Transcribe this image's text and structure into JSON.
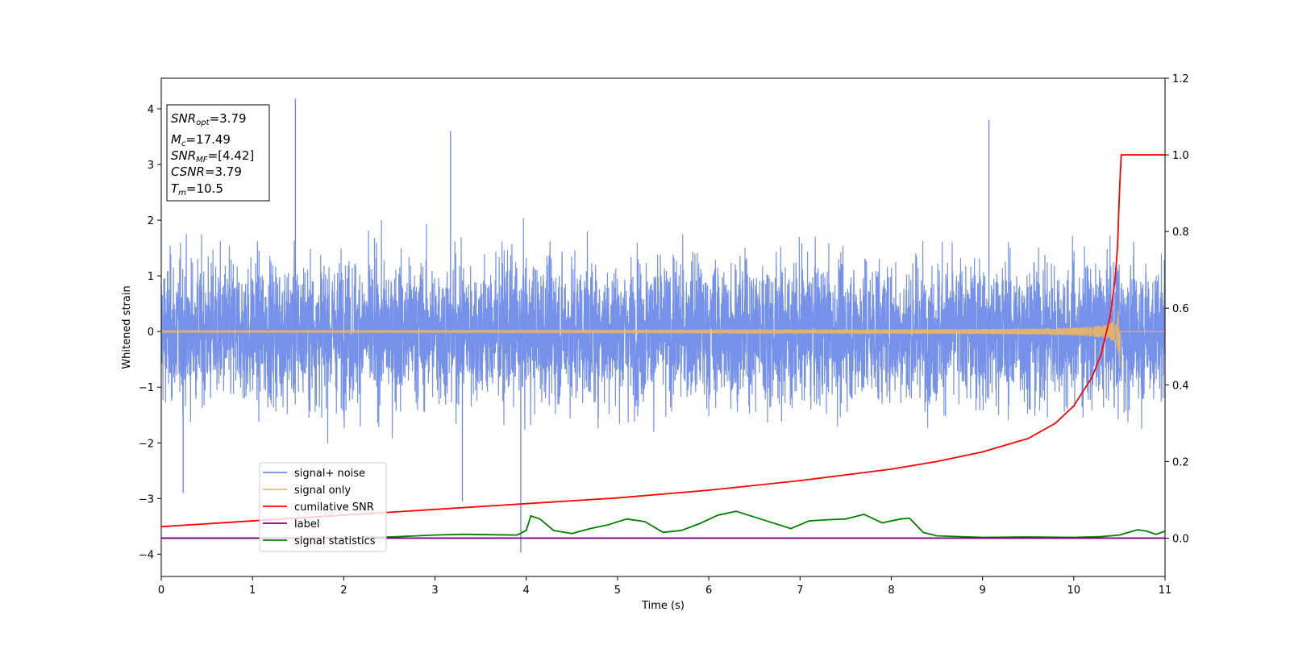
{
  "chart_data": {
    "type": "line",
    "xlabel": "Time (s)",
    "ylabel_left": "Whitened strain",
    "xlim": [
      0,
      11
    ],
    "ylim_left": [
      -4.4,
      4.55
    ],
    "ylim_right": [
      -0.1,
      1.2
    ],
    "x_ticks": [
      0,
      1,
      2,
      3,
      4,
      5,
      6,
      7,
      8,
      9,
      10,
      11
    ],
    "x_tick_labels": [
      "0",
      "1",
      "2",
      "3",
      "4",
      "5",
      "6",
      "7",
      "8",
      "9",
      "10",
      "11"
    ],
    "y_left_ticks": [
      -4,
      -3,
      -2,
      -1,
      0,
      1,
      2,
      3,
      4
    ],
    "y_left_tick_labels": [
      "−4",
      "−3",
      "−2",
      "−1",
      "0",
      "1",
      "2",
      "3",
      "4"
    ],
    "y_right_ticks": [
      0.0,
      0.2,
      0.4,
      0.6,
      0.8,
      1.0,
      1.2
    ],
    "y_right_tick_labels": [
      "0.0",
      "0.2",
      "0.4",
      "0.6",
      "0.8",
      "1.0",
      "1.2"
    ],
    "grid": false,
    "legend_position": "lower-left",
    "series": [
      {
        "name": "signal+ noise",
        "color": "#6f8be8",
        "axis": "left",
        "description_stats": {
          "typical_amplitude": [
            -2.0,
            2.2
          ],
          "min": -3.97,
          "max": 4.18
        },
        "spikes": [
          {
            "x": 1.47,
            "y": 4.18
          },
          {
            "x": 3.17,
            "y": 3.6
          },
          {
            "x": 9.07,
            "y": 3.8
          },
          {
            "x": 3.94,
            "y": -3.97
          },
          {
            "x": 0.24,
            "y": -2.9
          },
          {
            "x": 3.3,
            "y": -3.05
          }
        ]
      },
      {
        "name": "signal only",
        "color": "#f5b85a",
        "axis": "left",
        "chirp_peak_time": 10.5,
        "peak_amplitude": 0.65
      },
      {
        "name": "cumilative SNR",
        "color": "#ff0000",
        "axis": "right",
        "x": [
          0,
          1,
          2,
          3,
          4,
          5,
          6,
          7,
          8,
          8.5,
          9,
          9.5,
          9.8,
          10.0,
          10.2,
          10.3,
          10.4,
          10.45,
          10.48,
          10.5,
          10.52,
          11
        ],
        "y": [
          0.03,
          0.045,
          0.06,
          0.075,
          0.09,
          0.105,
          0.125,
          0.15,
          0.18,
          0.2,
          0.225,
          0.26,
          0.3,
          0.345,
          0.42,
          0.48,
          0.58,
          0.67,
          0.76,
          0.9,
          1.0,
          1.0
        ]
      },
      {
        "name": "label",
        "color": "#800080",
        "axis": "right",
        "x": [
          0,
          11
        ],
        "y": [
          0.0,
          0.0
        ]
      },
      {
        "name": "signal statistics",
        "color": "#008000",
        "axis": "right",
        "x": [
          0,
          1,
          2,
          2.5,
          2.7,
          3.0,
          3.3,
          3.6,
          3.9,
          4.0,
          4.05,
          4.15,
          4.3,
          4.5,
          4.7,
          4.9,
          5.1,
          5.3,
          5.5,
          5.7,
          5.9,
          6.1,
          6.3,
          6.5,
          6.7,
          6.9,
          7.1,
          7.3,
          7.5,
          7.7,
          7.9,
          8.1,
          8.2,
          8.35,
          8.5,
          9.0,
          9.5,
          10.0,
          10.3,
          10.5,
          10.6,
          10.7,
          10.8,
          10.9,
          11.0
        ],
        "y": [
          0.0,
          0.0,
          0.0,
          0.003,
          0.005,
          0.008,
          0.01,
          0.009,
          0.008,
          0.02,
          0.058,
          0.05,
          0.02,
          0.012,
          0.025,
          0.035,
          0.05,
          0.043,
          0.015,
          0.02,
          0.038,
          0.06,
          0.07,
          0.055,
          0.04,
          0.025,
          0.045,
          0.048,
          0.05,
          0.062,
          0.04,
          0.05,
          0.052,
          0.015,
          0.006,
          0.002,
          0.003,
          0.002,
          0.004,
          0.008,
          0.015,
          0.022,
          0.018,
          0.01,
          0.018
        ]
      }
    ],
    "annotation_box": {
      "lines": [
        {
          "prefix": "SNR",
          "sub": "opt",
          "value": "=3.79"
        },
        {
          "prefix": "M",
          "sub": "c",
          "value": "=17.49"
        },
        {
          "prefix": "SNR",
          "sub": "MF",
          "value": "=[4.42]"
        },
        {
          "prefix": "CSNR",
          "sub": "",
          "value": "=3.79"
        },
        {
          "prefix": "T",
          "sub": "m",
          "value": "=10.5"
        }
      ]
    }
  }
}
